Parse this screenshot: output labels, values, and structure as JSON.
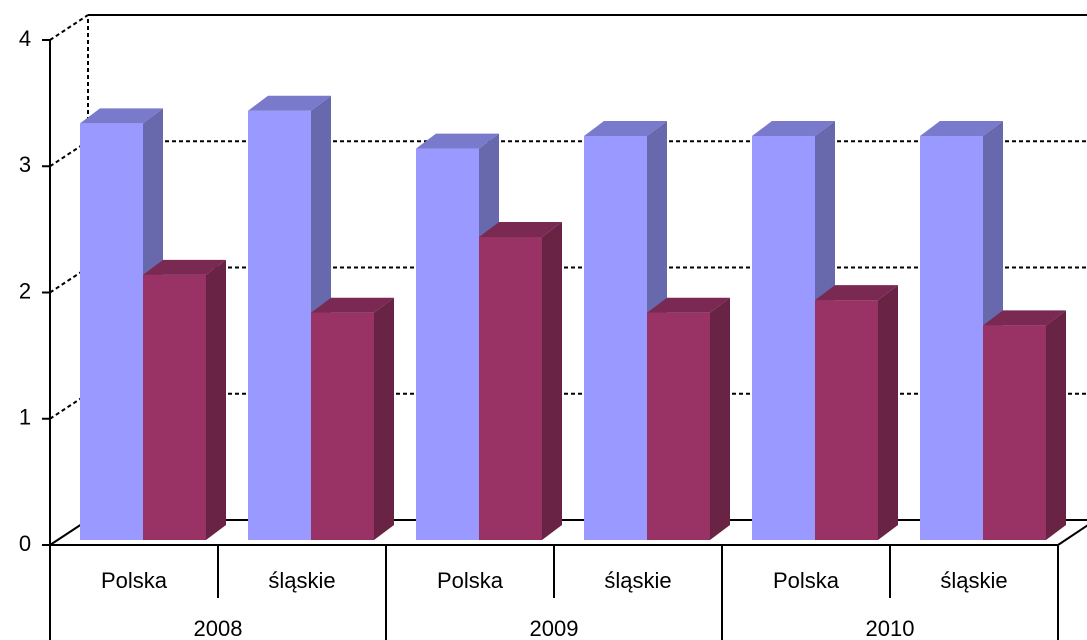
{
  "chart_data": {
    "type": "bar3d",
    "categories": [
      "Polska",
      "śląskie",
      "Polska",
      "śląskie",
      "Polska",
      "śląskie"
    ],
    "groups": [
      "2008",
      "2009",
      "2010"
    ],
    "series": [
      {
        "color": "#9999ff",
        "values": [
          3.3,
          3.4,
          3.1,
          3.2,
          3.2,
          3.2
        ]
      },
      {
        "color": "#993366",
        "values": [
          2.1,
          1.8,
          2.4,
          1.8,
          1.9,
          1.7
        ]
      }
    ],
    "ylim": [
      0,
      4
    ],
    "yticks": [
      0,
      1,
      2,
      3,
      4
    ],
    "grid": true
  }
}
